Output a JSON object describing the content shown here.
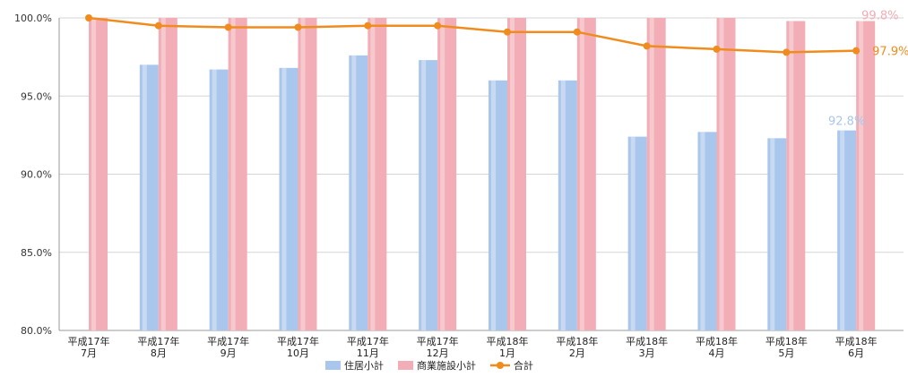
{
  "chart_data": {
    "type": "bar",
    "categories": [
      [
        "平成17年",
        "7月"
      ],
      [
        "平成17年",
        "8月"
      ],
      [
        "平成17年",
        "9月"
      ],
      [
        "平成17年",
        "10月"
      ],
      [
        "平成17年",
        "11月"
      ],
      [
        "平成17年",
        "12月"
      ],
      [
        "平成18年",
        "1月"
      ],
      [
        "平成18年",
        "2月"
      ],
      [
        "平成18年",
        "3月"
      ],
      [
        "平成18年",
        "4月"
      ],
      [
        "平成18年",
        "5月"
      ],
      [
        "平成18年",
        "6月"
      ]
    ],
    "series": [
      {
        "name": "住居小計",
        "type": "bar",
        "color": "#a9c6ec",
        "values": [
          null,
          97.0,
          96.7,
          96.8,
          97.6,
          97.3,
          96.0,
          96.0,
          92.4,
          92.7,
          92.3,
          92.8
        ]
      },
      {
        "name": "商業施設小計",
        "type": "bar",
        "color": "#f2adb6",
        "values": [
          100.0,
          100.0,
          100.0,
          100.0,
          100.0,
          100.0,
          100.0,
          100.0,
          100.0,
          100.0,
          99.8,
          99.8
        ]
      },
      {
        "name": "合計",
        "type": "line",
        "color": "#f08c1e",
        "values": [
          100.0,
          99.5,
          99.4,
          99.4,
          99.5,
          99.5,
          99.1,
          99.1,
          98.2,
          98.0,
          97.8,
          97.9
        ]
      }
    ],
    "ylim": [
      80.0,
      100.0
    ],
    "yticks": [
      "100.0%",
      "95.0%",
      "90.0%",
      "85.0%",
      "80.0%"
    ],
    "ytick_values": [
      100,
      95,
      90,
      85,
      80
    ],
    "annotations": [
      {
        "text": "99.8%",
        "series": 1,
        "index": 11
      },
      {
        "text": "97.9%",
        "series": 2,
        "index": 11
      },
      {
        "text": "92.8%",
        "series": 0,
        "index": 11
      }
    ],
    "legend": {
      "placement": "bottom-center"
    }
  }
}
